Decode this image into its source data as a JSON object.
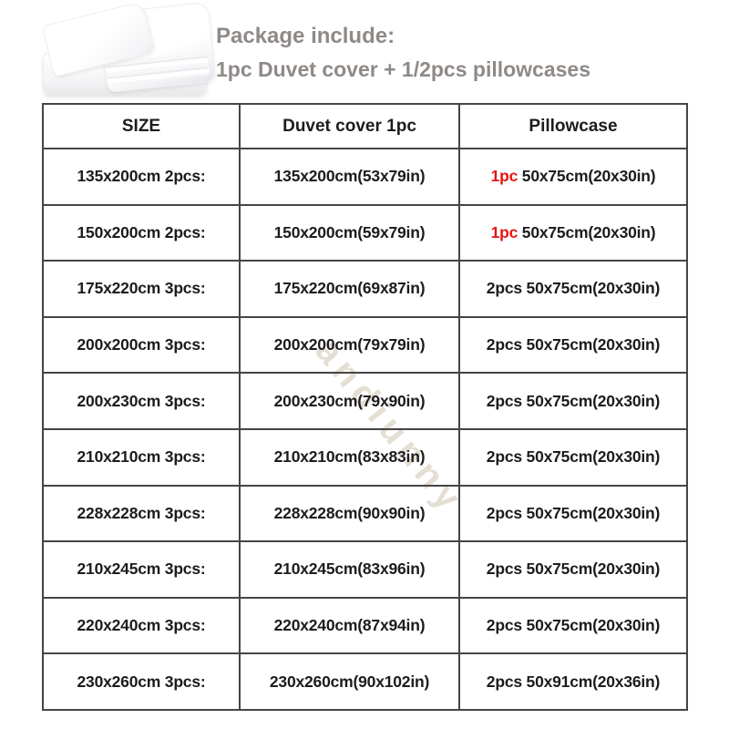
{
  "package": {
    "title": "Package include:",
    "subtitle": "1pc Duvet cover + 1/2pcs pillowcases"
  },
  "watermark": "andiunny",
  "colors": {
    "accent_red": "#e81414",
    "title_gray": "#8f8a87",
    "table_border": "#454545"
  },
  "table": {
    "columns": [
      "SIZE",
      "Duvet cover 1pc",
      "Pillowcase"
    ],
    "rows": [
      {
        "size": "135x200cm 2pcs:",
        "duvet": "135x200cm(53x79in)",
        "pillow_qty": "1pc",
        "pillow_rest": "50x75cm(20x30in)",
        "qty_red": true
      },
      {
        "size": "150x200cm 2pcs:",
        "duvet": "150x200cm(59x79in)",
        "pillow_qty": "1pc",
        "pillow_rest": "50x75cm(20x30in)",
        "qty_red": true
      },
      {
        "size": "175x220cm 3pcs:",
        "duvet": "175x220cm(69x87in)",
        "pillow_qty": "2pcs",
        "pillow_rest": "50x75cm(20x30in)",
        "qty_red": false
      },
      {
        "size": "200x200cm 3pcs:",
        "duvet": "200x200cm(79x79in)",
        "pillow_qty": "2pcs",
        "pillow_rest": "50x75cm(20x30in)",
        "qty_red": false
      },
      {
        "size": "200x230cm 3pcs:",
        "duvet": "200x230cm(79x90in)",
        "pillow_qty": "2pcs",
        "pillow_rest": "50x75cm(20x30in)",
        "qty_red": false
      },
      {
        "size": "210x210cm 3pcs:",
        "duvet": "210x210cm(83x83in)",
        "pillow_qty": "2pcs",
        "pillow_rest": "50x75cm(20x30in)",
        "qty_red": false
      },
      {
        "size": "228x228cm 3pcs:",
        "duvet": "228x228cm(90x90in)",
        "pillow_qty": "2pcs",
        "pillow_rest": "50x75cm(20x30in)",
        "qty_red": false
      },
      {
        "size": "210x245cm 3pcs:",
        "duvet": "210x245cm(83x96in)",
        "pillow_qty": "2pcs",
        "pillow_rest": "50x75cm(20x30in)",
        "qty_red": false
      },
      {
        "size": "220x240cm 3pcs:",
        "duvet": "220x240cm(87x94in)",
        "pillow_qty": "2pcs",
        "pillow_rest": "50x75cm(20x30in)",
        "qty_red": false
      },
      {
        "size": "230x260cm 3pcs:",
        "duvet": "230x260cm(90x102in)",
        "pillow_qty": "2pcs",
        "pillow_rest": "50x91cm(20x36in)",
        "qty_red": false
      }
    ]
  }
}
